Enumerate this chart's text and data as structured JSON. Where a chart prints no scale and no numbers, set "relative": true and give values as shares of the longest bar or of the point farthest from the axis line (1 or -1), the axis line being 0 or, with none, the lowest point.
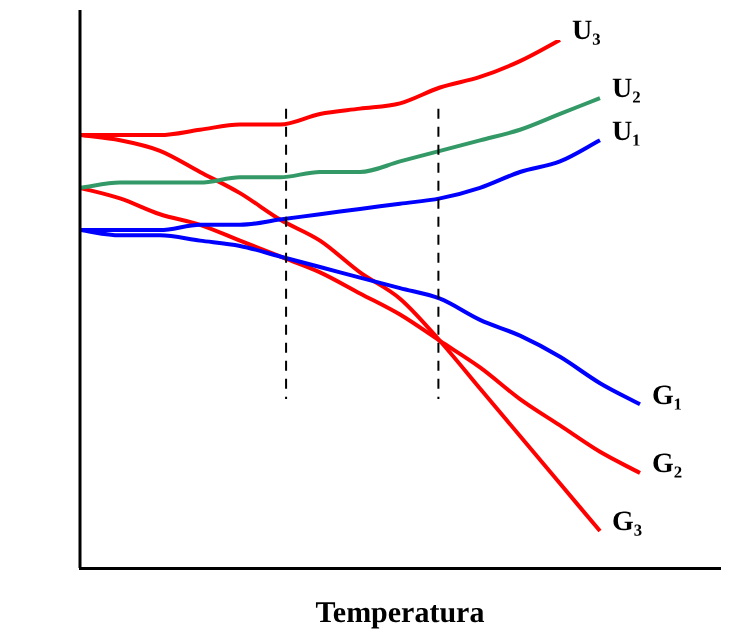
{
  "chart_data": {
    "type": "line",
    "relative": true,
    "xlabel": "Temperatura",
    "marker": "none",
    "categories": [
      null,
      null,
      null,
      null,
      null,
      null,
      null,
      null,
      null,
      null,
      null,
      null,
      null,
      null,
      null,
      null,
      null
    ],
    "series": [
      {
        "name": "U₃",
        "color": "#ff0000",
        "values": [
          0.82,
          0.82,
          0.82,
          0.83,
          0.84,
          0.84,
          0.86,
          0.87,
          0.88,
          0.91,
          0.93,
          0.96,
          1,
          null,
          null,
          null,
          null
        ]
      },
      {
        "name": "U₂",
        "color": "#339966",
        "values": [
          0.72,
          0.73,
          0.73,
          0.73,
          0.74,
          0.74,
          0.75,
          0.75,
          0.77,
          0.79,
          0.81,
          0.83,
          0.86,
          0.89,
          null,
          null,
          null
        ]
      },
      {
        "name": "U₁",
        "color": "#0000ff",
        "values": [
          0.64,
          0.64,
          0.64,
          0.65,
          0.65,
          0.66,
          0.67,
          0.68,
          0.69,
          0.7,
          0.72,
          0.75,
          0.77,
          0.81,
          null,
          null,
          null
        ]
      },
      {
        "name": "G₁",
        "color": "#0000ff",
        "values": [
          0.64,
          0.63,
          0.63,
          0.62,
          0.61,
          0.59,
          0.57,
          0.55,
          0.53,
          0.51,
          0.47,
          0.44,
          0.4,
          0.35,
          0.31,
          null,
          null
        ]
      },
      {
        "name": "G₂",
        "color": "#ff0000",
        "values": [
          0.72,
          0.7,
          0.67,
          0.65,
          0.62,
          0.59,
          0.56,
          0.52,
          0.48,
          0.43,
          0.38,
          0.32,
          0.27,
          0.22,
          0.18,
          null,
          null
        ]
      },
      {
        "name": "G₃",
        "color": "#ff0000",
        "values": [
          0.82,
          0.81,
          0.79,
          0.75,
          0.71,
          0.66,
          0.62,
          0.56,
          0.51,
          0.43,
          0.34,
          0.25,
          0.16,
          0.07,
          null,
          null,
          null
        ]
      }
    ]
  }
}
